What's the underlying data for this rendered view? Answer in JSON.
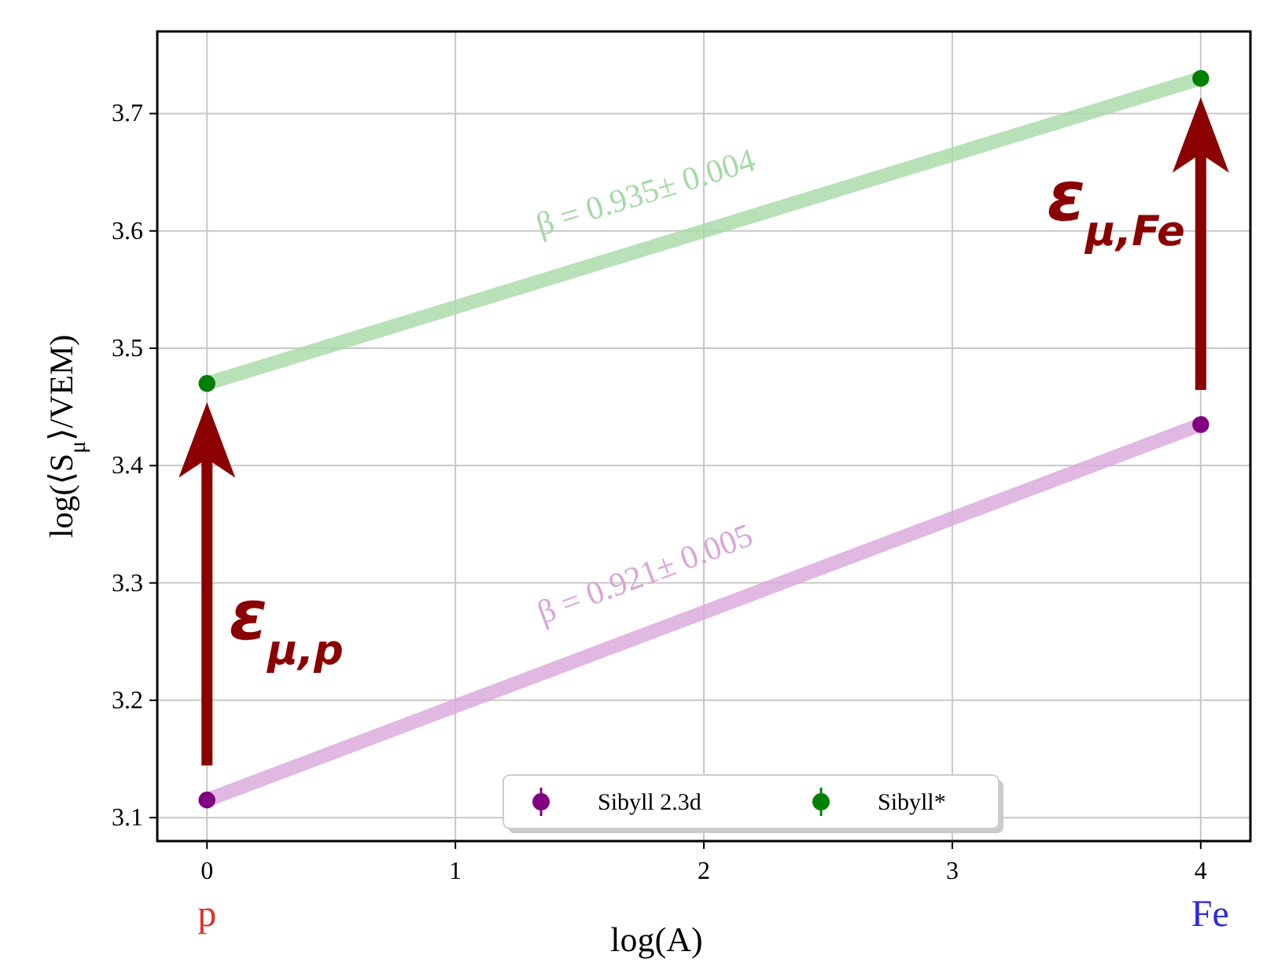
{
  "chart_data": {
    "type": "scatter",
    "xlabel": "log(A)",
    "ylabel": "log(⟨S$_{μ}$⟩/VEM)",
    "x": [
      0,
      4
    ],
    "series": [
      {
        "name": "Sibyll 2.3d",
        "color": "#800080",
        "values": [
          3.115,
          3.435
        ],
        "marker": "circle"
      },
      {
        "name": "Sibyll*",
        "color": "#008000",
        "values": [
          3.47,
          3.73
        ],
        "marker": "circle"
      },
      {
        "type": "line",
        "color": "#d9a6d9",
        "values": [
          3.115,
          3.435
        ]
      },
      {
        "type": "line",
        "color": "#a6d9a6",
        "values": [
          3.47,
          3.73
        ]
      }
    ],
    "xlim": [
      -0.2,
      4.2
    ],
    "xticks": [
      0,
      1,
      2,
      3,
      4
    ],
    "ylim": [
      3.08,
      3.77
    ],
    "yticks": [
      3.1,
      3.2,
      3.3,
      3.4,
      3.5,
      3.6,
      3.7
    ],
    "grid": true,
    "legend": "bottom",
    "annotations": [
      "β = 0.935± 0.004",
      "β = 0.921± 0.005",
      "ε$_{μ,p}$",
      "ε$_{μ,Fe}$",
      "p",
      "Fe"
    ]
  }
}
